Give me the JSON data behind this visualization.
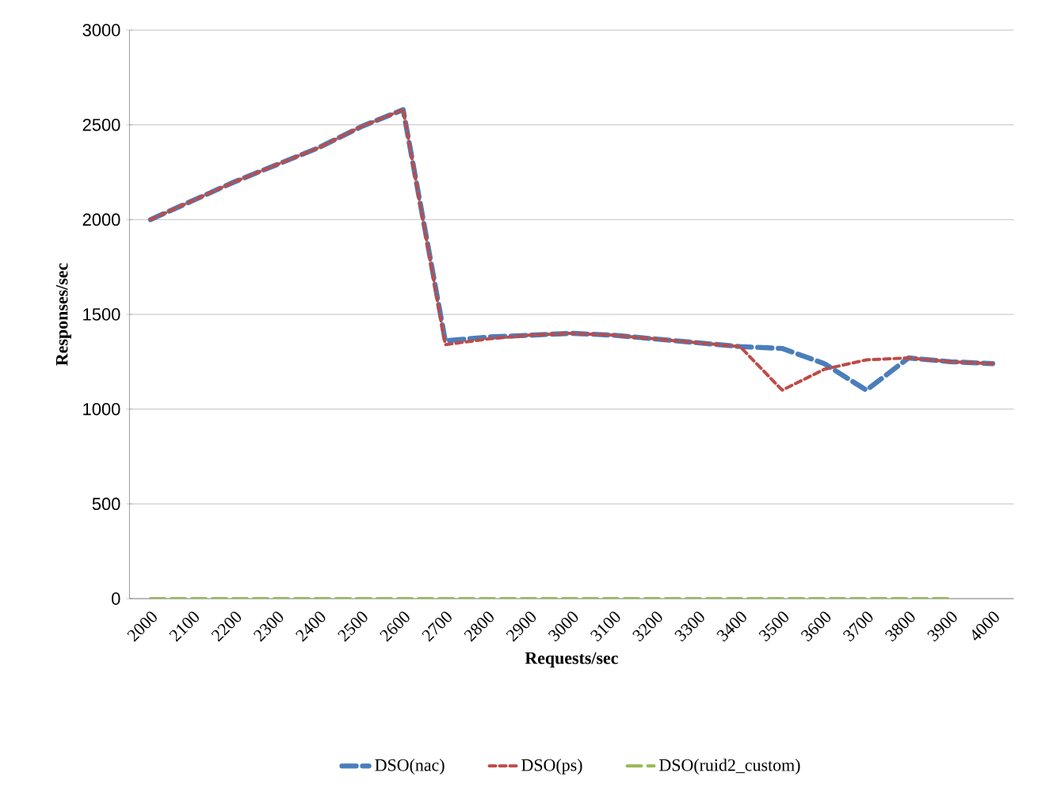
{
  "chart_data": {
    "type": "line",
    "xlabel": "Requests/sec",
    "ylabel": "Responses/sec",
    "categories": [
      "2000",
      "2100",
      "2200",
      "2300",
      "2400",
      "2500",
      "2600",
      "2700",
      "2800",
      "2900",
      "3000",
      "3100",
      "3200",
      "3300",
      "3400",
      "3500",
      "3600",
      "3700",
      "3800",
      "3900",
      "4000"
    ],
    "series": [
      {
        "name": "DSO(nac)",
        "color": "#4a7ebb",
        "line_style": "dashed",
        "values": [
          2000,
          2100,
          2200,
          2290,
          2380,
          2490,
          2580,
          1360,
          1380,
          1390,
          1400,
          1390,
          1370,
          1350,
          1330,
          1320,
          1240,
          1100,
          1270,
          1250,
          1240
        ]
      },
      {
        "name": "DSO(ps)",
        "color": "#be4b48",
        "line_style": "dotted",
        "values": [
          2000,
          2100,
          2200,
          2290,
          2380,
          2490,
          2580,
          1340,
          1370,
          1390,
          1400,
          1390,
          1370,
          1350,
          1330,
          1100,
          1210,
          1260,
          1270,
          1250,
          1240
        ]
      },
      {
        "name": "DSO(ruid2_custom)",
        "color": "#98b954",
        "line_style": "dashed",
        "values": [
          0,
          0,
          0,
          0,
          0,
          0,
          0,
          0,
          0,
          0,
          0,
          0,
          0,
          0,
          0,
          0,
          0,
          0,
          0,
          0,
          null
        ]
      }
    ],
    "ylim": [
      0,
      3000
    ],
    "yticks": [
      0,
      500,
      1000,
      1500,
      2000,
      2500,
      3000
    ],
    "grid": "y",
    "legend": "bottom"
  }
}
